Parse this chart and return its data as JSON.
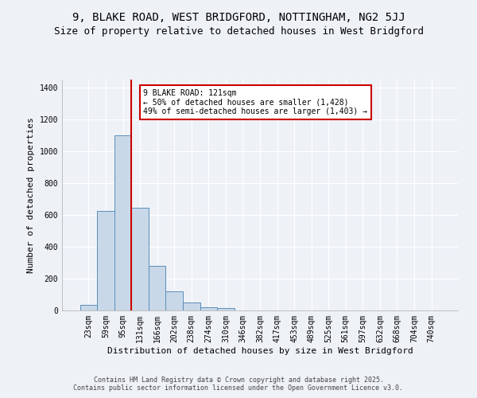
{
  "title": "9, BLAKE ROAD, WEST BRIDGFORD, NOTTINGHAM, NG2 5JJ",
  "subtitle": "Size of property relative to detached houses in West Bridgford",
  "xlabel": "Distribution of detached houses by size in West Bridgford",
  "ylabel": "Number of detached properties",
  "bar_color": "#c8d8e8",
  "bar_edge_color": "#5b8db8",
  "categories": [
    "23sqm",
    "59sqm",
    "95sqm",
    "131sqm",
    "166sqm",
    "202sqm",
    "238sqm",
    "274sqm",
    "310sqm",
    "346sqm",
    "382sqm",
    "417sqm",
    "453sqm",
    "489sqm",
    "525sqm",
    "561sqm",
    "597sqm",
    "632sqm",
    "668sqm",
    "704sqm",
    "740sqm"
  ],
  "values": [
    35,
    625,
    1100,
    645,
    280,
    120,
    50,
    20,
    15,
    0,
    0,
    0,
    0,
    0,
    0,
    0,
    0,
    0,
    0,
    0,
    0
  ],
  "ylim": [
    0,
    1450
  ],
  "yticks": [
    0,
    200,
    400,
    600,
    800,
    1000,
    1200,
    1400
  ],
  "vline_color": "#cc0000",
  "vline_x": 2.5,
  "annotation_text": "9 BLAKE ROAD: 121sqm\n← 50% of detached houses are smaller (1,428)\n49% of semi-detached houses are larger (1,403) →",
  "annotation_box_color": "#ffffff",
  "annotation_box_edge": "#cc0000",
  "footer": "Contains HM Land Registry data © Crown copyright and database right 2025.\nContains public sector information licensed under the Open Government Licence v3.0.",
  "bg_color": "#eef2f7",
  "grid_color": "#ffffff",
  "title_fontsize": 10,
  "subtitle_fontsize": 9,
  "label_fontsize": 8,
  "tick_fontsize": 7,
  "footer_fontsize": 6
}
